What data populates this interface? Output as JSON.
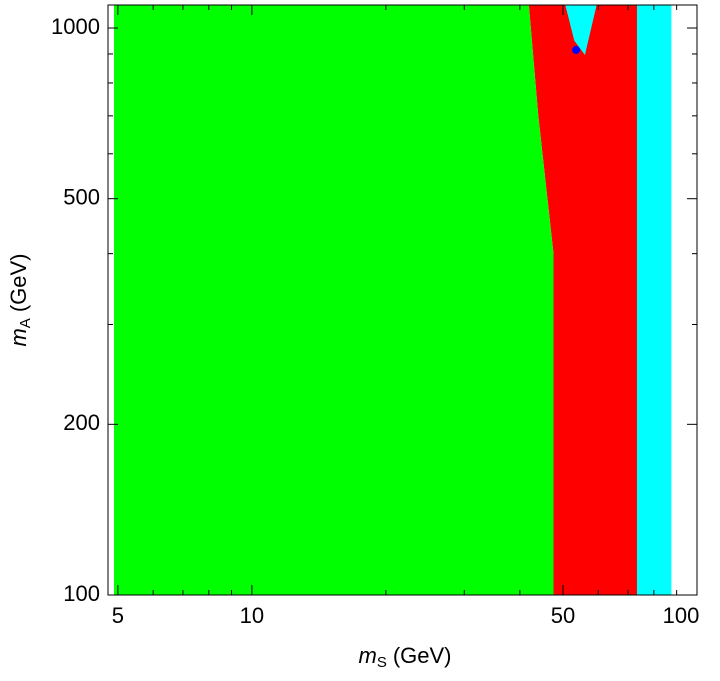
{
  "chart_data": {
    "type": "region",
    "xlabel": {
      "symbol": "m",
      "subscript": "S",
      "unit": "(GeV)"
    },
    "ylabel": {
      "symbol": "m",
      "subscript": "A",
      "unit": "(GeV)"
    },
    "xscale": "log",
    "yscale": "log",
    "xlim": [
      4.75,
      100
    ],
    "ylim": [
      100,
      1098
    ],
    "xticks": [
      5,
      10,
      50,
      100
    ],
    "yticks": [
      100,
      200,
      500,
      1000
    ],
    "xminorticks": [
      6,
      7,
      8,
      9,
      20,
      30,
      40,
      60,
      70,
      80,
      90
    ],
    "yminorticks": [
      300,
      400,
      600,
      700,
      800,
      900
    ],
    "series": [
      {
        "color": "#00ffff",
        "x": [
          50.6,
          87.6,
          87.6,
          50.6
        ],
        "values": [
          1098,
          1098,
          100,
          100
        ]
      },
      {
        "color": "#ff0000",
        "x": [
          41.9,
          50.6,
          53,
          56,
          59.5,
          73.3,
          73.3,
          47.6,
          47.6,
          44
        ],
        "values": [
          1098,
          1098,
          950,
          896,
          1098,
          1098,
          100,
          100,
          400,
          700
        ]
      },
      {
        "color": "#00ff00",
        "x": [
          4.9,
          41.9,
          44,
          47.6,
          47.6,
          4.9
        ],
        "values": [
          1098,
          1098,
          700,
          400,
          100,
          100
        ]
      },
      {
        "color": "#0000ff",
        "x": [
          53.5
        ],
        "values": [
          915
        ]
      }
    ]
  }
}
